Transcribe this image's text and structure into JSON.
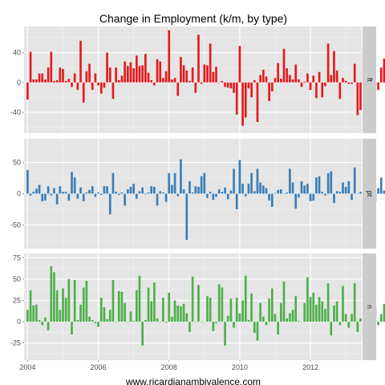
{
  "chart_data": {
    "type": "bar",
    "title": "Change in Employment (k/m, by type)",
    "caption": "www.ricardianambivalence.com",
    "x_range": [
      2003.9,
      2013.45
    ],
    "x_ticks": [
      "2004",
      "2006",
      "2008",
      "2010",
      "2012"
    ],
    "x_tick_values": [
      2004,
      2006,
      2008,
      2010,
      2012
    ],
    "x_start": 2004.0,
    "x_step": 0.0833333,
    "grid": true,
    "colors": {
      "ft": "#e41a1c",
      "pt": "#377eb8",
      "n": "#4daf4a",
      "panel": "#e5e5e5",
      "strip": "#cccccc",
      "gridline": "#ffffff"
    },
    "panels": [
      {
        "name": "ft",
        "ylim": [
          -68,
          75
        ],
        "y_ticks": [
          -40,
          0,
          40
        ],
        "y_tick_labels": [
          "-40",
          "0",
          "40"
        ],
        "values": [
          -23,
          41,
          4,
          4,
          12,
          12,
          4,
          20,
          41,
          2,
          3,
          20,
          18,
          2,
          5,
          -6,
          12,
          -10,
          56,
          -27,
          15,
          25,
          -10,
          12,
          -4,
          -15,
          -7,
          40,
          20,
          -22,
          20,
          3,
          9,
          28,
          22,
          27,
          19,
          36,
          22,
          23,
          38,
          13,
          3,
          -4,
          31,
          28,
          6,
          15,
          70,
          4,
          6,
          -18,
          34,
          23,
          16,
          2,
          20,
          -14,
          64,
          -2,
          24,
          23,
          52,
          14,
          21,
          0,
          2,
          -6,
          -7,
          -8,
          -14,
          -43,
          49,
          -58,
          -47,
          -8,
          -20,
          3,
          -53,
          10,
          17,
          8,
          -25,
          -12,
          6,
          26,
          5,
          45,
          19,
          10,
          4,
          24,
          4,
          -6,
          1,
          12,
          -10,
          9,
          -21,
          14,
          -20,
          -5,
          52,
          10,
          42,
          16,
          -22,
          6,
          2,
          -2,
          -2,
          25,
          -44,
          -37,
          46,
          3,
          9,
          14,
          -3,
          -10,
          20,
          32,
          31,
          10,
          -13,
          -10,
          31,
          -23,
          1,
          -12,
          38,
          19,
          1,
          -8,
          -2,
          0,
          -15,
          -12,
          -10,
          18,
          -6
        ]
      },
      {
        "name": "pt",
        "ylim": [
          -88,
          88
        ],
        "y_ticks": [
          -50,
          0,
          50
        ],
        "y_tick_labels": [
          "-50",
          "0",
          "50"
        ],
        "values": [
          38,
          -3,
          3,
          8,
          14,
          -12,
          -11,
          12,
          -3,
          9,
          -17,
          12,
          3,
          3,
          -11,
          35,
          26,
          -8,
          10,
          -12,
          2,
          6,
          12,
          -5,
          2,
          -2,
          12,
          12,
          -33,
          33,
          3,
          -2,
          2,
          -19,
          7,
          11,
          16,
          -8,
          4,
          10,
          -1,
          2,
          12,
          11,
          -19,
          4,
          2,
          -13,
          33,
          14,
          33,
          -4,
          55,
          7,
          -74,
          20,
          2,
          12,
          11,
          28,
          33,
          -7,
          3,
          -10,
          -5,
          7,
          3,
          10,
          -9,
          5,
          40,
          -25,
          54,
          16,
          -4,
          16,
          33,
          4,
          40,
          18,
          13,
          9,
          -11,
          -21,
          1,
          6,
          7,
          0,
          2,
          40,
          18,
          -24,
          -6,
          20,
          13,
          16,
          -12,
          -11,
          26,
          28,
          3,
          -3,
          33,
          36,
          -15,
          4,
          3,
          18,
          11,
          20,
          -10,
          42,
          0,
          3,
          -38,
          -3,
          35,
          29,
          -13,
          9,
          26,
          5,
          11,
          19,
          36,
          -9,
          23,
          -27,
          3,
          30,
          36,
          -64,
          35,
          6,
          2,
          4,
          -9,
          2,
          5,
          -10,
          55,
          -28
        ]
      },
      {
        "name": "n",
        "ylim": [
          -45,
          80
        ],
        "y_ticks": [
          -25,
          0,
          25,
          50,
          75
        ],
        "y_tick_labels": [
          "-25",
          "0",
          "25",
          "50",
          "75"
        ],
        "values": [
          14,
          37,
          19,
          20,
          2,
          -4,
          5,
          -10,
          65,
          58,
          37,
          14,
          39,
          28,
          50,
          -15,
          49,
          2,
          20,
          40,
          48,
          6,
          2,
          -2,
          -6,
          28,
          17,
          3,
          14,
          49,
          0,
          36,
          35,
          22,
          0,
          12,
          1,
          37,
          54,
          -28,
          2,
          40,
          24,
          46,
          4,
          0,
          28,
          -1,
          34,
          6,
          25,
          19,
          18,
          21,
          10,
          -12,
          53,
          0,
          43,
          0,
          0,
          30,
          28,
          -11,
          -2,
          44,
          40,
          -28,
          7,
          27,
          -7,
          28,
          10,
          25,
          54,
          2,
          33,
          -13,
          -22,
          22,
          6,
          -4,
          27,
          39,
          9,
          -15,
          22,
          47,
          4,
          10,
          14,
          30,
          1,
          0,
          22,
          52,
          29,
          34,
          20,
          29,
          24,
          15,
          45,
          -16,
          19,
          24,
          -4,
          42,
          9,
          -7,
          9,
          45,
          -12,
          4,
          -21,
          21,
          -3,
          7,
          16,
          -4,
          9,
          21,
          19,
          0,
          8,
          1,
          -30,
          -13,
          45,
          62,
          -13,
          6,
          16,
          23,
          -22,
          1,
          28,
          -3,
          74,
          -34
        ]
      }
    ]
  }
}
